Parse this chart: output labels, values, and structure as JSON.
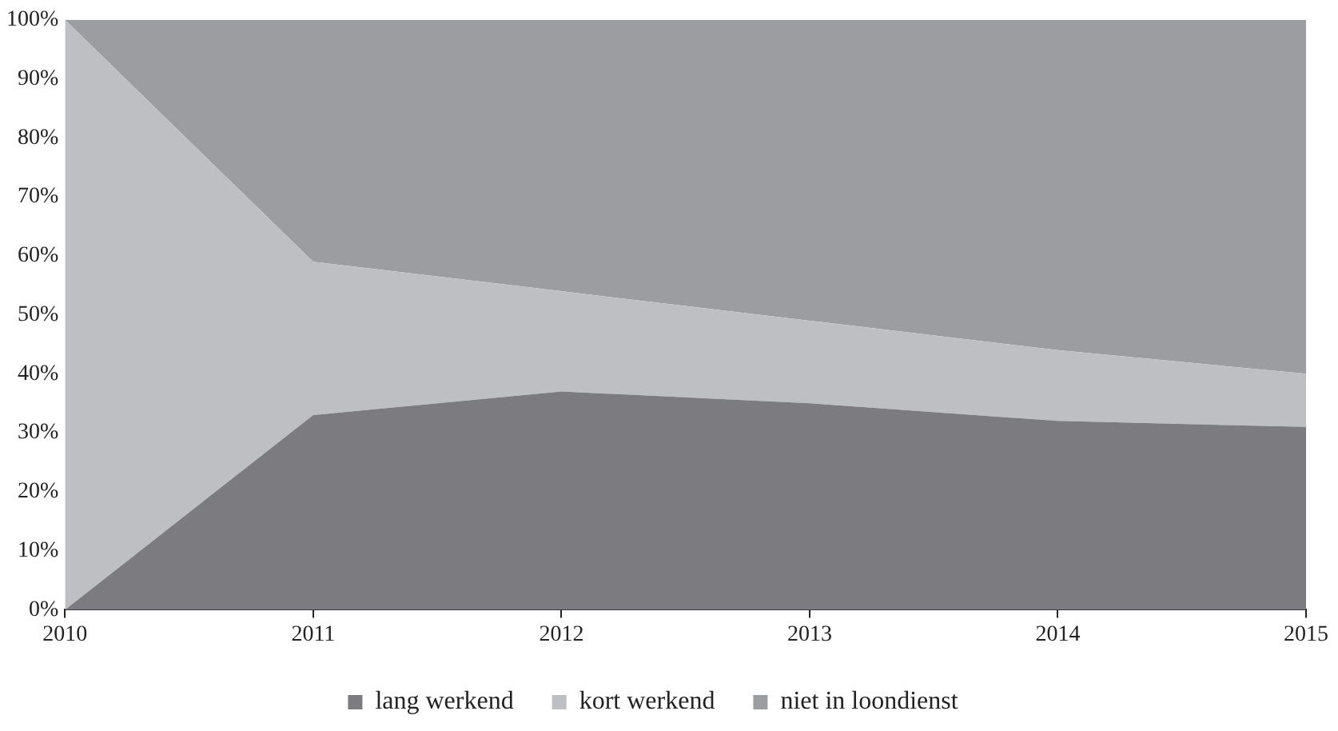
{
  "chart_data": {
    "type": "area",
    "stacked": true,
    "categories": [
      "2010",
      "2011",
      "2012",
      "2013",
      "2014",
      "2015"
    ],
    "series": [
      {
        "name": "lang werkend",
        "color": "#7c7c80",
        "values": [
          0,
          33,
          37,
          35,
          32,
          31
        ]
      },
      {
        "name": "kort werkend",
        "color": "#bebfc3",
        "values": [
          100,
          26,
          17,
          14,
          12,
          9
        ]
      },
      {
        "name": "niet in loondienst",
        "color": "#9c9da1",
        "values": [
          0,
          41,
          46,
          51,
          56,
          60
        ]
      }
    ],
    "ylim": [
      0,
      100
    ],
    "yticks": [
      {
        "value": 0,
        "label": "0%"
      },
      {
        "value": 10,
        "label": "10%"
      },
      {
        "value": 20,
        "label": "20%"
      },
      {
        "value": 30,
        "label": "30%"
      },
      {
        "value": 40,
        "label": "40%"
      },
      {
        "value": 50,
        "label": "50%"
      },
      {
        "value": 60,
        "label": "60%"
      },
      {
        "value": 70,
        "label": "70%"
      },
      {
        "value": 80,
        "label": "80%"
      },
      {
        "value": 90,
        "label": "90%"
      },
      {
        "value": 100,
        "label": "100%"
      }
    ],
    "grid": false,
    "legend": "bottom"
  }
}
